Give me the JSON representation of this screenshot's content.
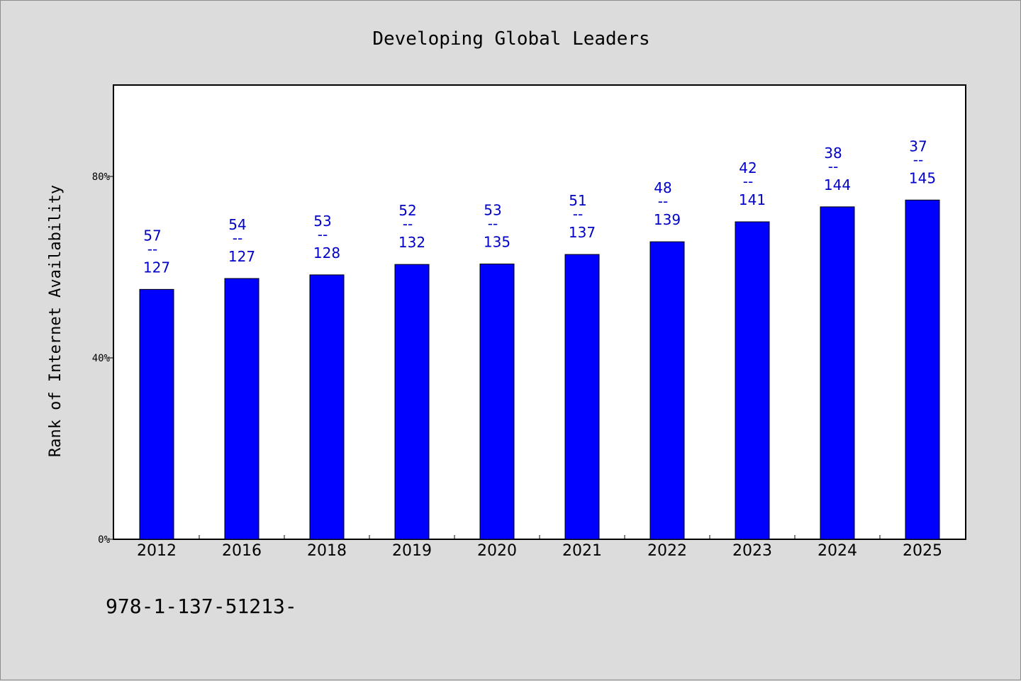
{
  "chart_data": {
    "type": "bar",
    "title": "Developing Global Leaders",
    "ylabel": "Rank of Internet Availability",
    "xlabel": "",
    "categories": [
      "2012",
      "2016",
      "2018",
      "2019",
      "2020",
      "2021",
      "2022",
      "2023",
      "2024",
      "2025"
    ],
    "values": [
      55.1,
      57.5,
      58.3,
      60.6,
      60.7,
      62.8,
      65.6,
      70.0,
      73.3,
      74.8
    ],
    "ylim": [
      0,
      100
    ],
    "yticks": [
      0,
      40,
      80
    ],
    "ytick_labels": [
      "0%",
      "40%",
      "80%"
    ],
    "data_labels": [
      {
        "rank": "57",
        "separator": "--",
        "total": "127"
      },
      {
        "rank": "54",
        "separator": "--",
        "total": "127"
      },
      {
        "rank": "53",
        "separator": "--",
        "total": "128"
      },
      {
        "rank": "52",
        "separator": "--",
        "total": "132"
      },
      {
        "rank": "53",
        "separator": "--",
        "total": "135"
      },
      {
        "rank": "51",
        "separator": "--",
        "total": "137"
      },
      {
        "rank": "48",
        "separator": "--",
        "total": "139"
      },
      {
        "rank": "42",
        "separator": "--",
        "total": "141"
      },
      {
        "rank": "38",
        "separator": "--",
        "total": "144"
      },
      {
        "rank": "37",
        "separator": "--",
        "total": "145"
      }
    ],
    "grid": false,
    "bar_color": "#0000ff",
    "label_color": "#0000c8",
    "plot_background": "#ffffff",
    "figure_background": "#dcdcdc"
  },
  "footer": {
    "text": "978-1-137-51213-"
  }
}
